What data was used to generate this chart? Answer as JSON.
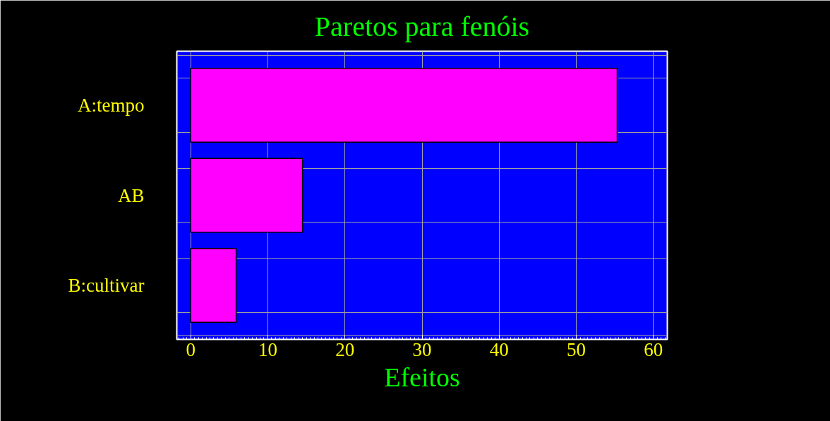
{
  "chart_data": {
    "type": "bar",
    "orientation": "horizontal",
    "title": "Paretos para fenóis",
    "xlabel": "Efeitos",
    "categories": [
      "A:tempo",
      "AB",
      "B:cultivar"
    ],
    "values": [
      55.3,
      14.5,
      5.9
    ],
    "color": "#ff00ff",
    "xlim": [
      -1.8,
      61.8
    ],
    "xticks": [
      0,
      10,
      20,
      30,
      40,
      50,
      60
    ],
    "grid": true
  }
}
